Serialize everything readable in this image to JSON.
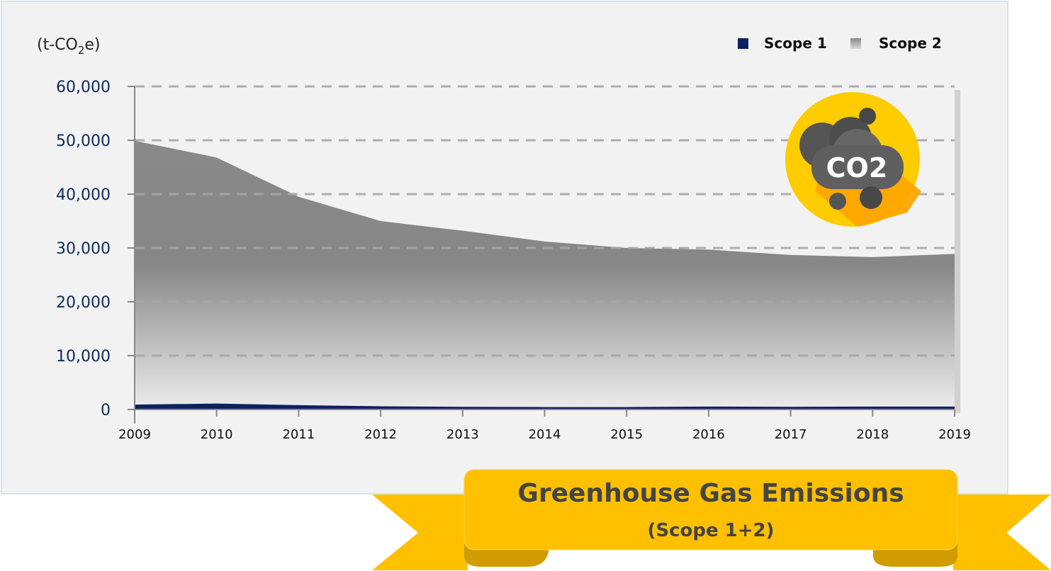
{
  "chart_data": {
    "type": "area",
    "title": "Greenhouse Gas Emissions",
    "subtitle": "(Scope 1+2)",
    "ylabel": {
      "prefix": "(t-CO",
      "sub": "2",
      "suffix": "e)"
    },
    "xlabel": "",
    "categories": [
      "2009",
      "2010",
      "2011",
      "2012",
      "2013",
      "2014",
      "2015",
      "2016",
      "2017",
      "2018",
      "2019"
    ],
    "y_ticks": [
      "0",
      "10,000",
      "20,000",
      "30,000",
      "40,000",
      "50,000",
      "60,000"
    ],
    "y_tick_values": [
      0,
      10000,
      20000,
      30000,
      40000,
      50000,
      60000
    ],
    "ylim": [
      0,
      60000
    ],
    "grid": true,
    "legend_position": "top-right",
    "series": [
      {
        "name": "Scope 1",
        "color": "#0b2260",
        "values": [
          900,
          1100,
          800,
          600,
          500,
          450,
          450,
          550,
          500,
          550,
          550
        ]
      },
      {
        "name": "Scope 2",
        "color": "#888888",
        "values": [
          49900,
          46800,
          39500,
          35000,
          33200,
          31200,
          30000,
          29700,
          28700,
          28300,
          28900
        ]
      }
    ]
  },
  "legend": {
    "items": [
      "Scope 1",
      "Scope 2"
    ]
  },
  "icon": {
    "label": "CO2"
  }
}
